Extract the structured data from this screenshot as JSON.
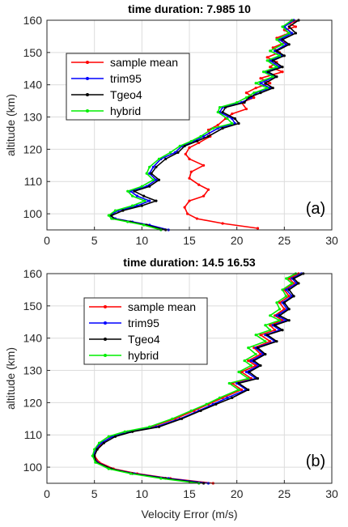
{
  "figure": {
    "xlabel_bottom": "Velocity Error (m/s)"
  },
  "chart_data": [
    {
      "type": "line",
      "panel_label": "(a)",
      "title": "time duration: 7.985          10",
      "xlabel": "",
      "ylabel": "altitude (km)",
      "xlim": [
        0,
        30
      ],
      "ylim": [
        95,
        160
      ],
      "xticks": [
        0,
        5,
        10,
        15,
        20,
        25,
        30
      ],
      "yticks": [
        100,
        110,
        120,
        130,
        140,
        150,
        160
      ],
      "grid": true,
      "legend_position": "upper-left",
      "series": [
        {
          "name": "sample mean",
          "color": "#ff0000",
          "x": [
            22.2,
            18.5,
            15.8,
            14.8,
            14.5,
            15.0,
            16.5,
            17.0,
            16.0,
            15.0,
            15.2,
            16.5,
            15.0,
            14.6,
            15.0,
            16.0,
            17.2,
            17.0,
            18.0,
            18.8,
            19.5,
            21.0,
            20.5,
            21.8,
            21.0,
            22.0,
            23.5,
            22.5,
            24.8,
            23.5,
            24.2,
            23.2,
            24.5,
            23.8,
            25.0,
            24.2,
            25.5,
            25.0,
            26.2,
            25.5,
            26.5
          ],
          "y": [
            95.5,
            97.0,
            98.5,
            100.0,
            102.0,
            104.0,
            105.5,
            107.5,
            109.0,
            111.0,
            113.0,
            115.0,
            117.0,
            118.5,
            120.5,
            122.0,
            124.0,
            126.0,
            127.5,
            129.5,
            131.0,
            132.5,
            134.5,
            136.0,
            137.5,
            139.0,
            140.5,
            142.0,
            144.0,
            145.5,
            147.0,
            148.5,
            150.0,
            151.5,
            153.0,
            154.5,
            156.0,
            157.0,
            158.0,
            159.0,
            160.0
          ]
        },
        {
          "name": "trim95",
          "color": "#0000ff",
          "x": [
            12.8,
            10.8,
            9.0,
            7.2,
            6.6,
            7.5,
            9.5,
            10.8,
            9.5,
            8.8,
            10.5,
            11.5,
            10.8,
            11.2,
            12.0,
            13.5,
            14.2,
            15.5,
            16.5,
            18.0,
            19.8,
            19.5,
            18.2,
            18.5,
            20.5,
            21.5,
            22.0,
            23.5,
            22.5,
            24.0,
            23.0,
            24.5,
            23.5,
            24.8,
            24.0,
            25.2,
            24.5,
            25.8,
            25.0,
            26.0
          ],
          "y": [
            95.0,
            96.5,
            97.5,
            98.5,
            99.5,
            101.0,
            102.5,
            104.0,
            105.5,
            107.0,
            108.5,
            110.5,
            112.5,
            114.5,
            117.0,
            119.0,
            121.0,
            122.5,
            124.0,
            126.5,
            128.0,
            129.5,
            131.5,
            133.0,
            134.5,
            136.0,
            137.5,
            139.0,
            140.5,
            142.5,
            144.0,
            145.5,
            147.5,
            149.0,
            150.5,
            152.5,
            154.0,
            156.0,
            158.0,
            160.0
          ]
        },
        {
          "name": "Tgeo4",
          "color": "#000000",
          "x": [
            12.5,
            10.5,
            8.8,
            7.0,
            6.8,
            8.0,
            10.0,
            11.5,
            10.2,
            9.2,
            10.8,
            11.8,
            11.0,
            11.5,
            12.5,
            13.8,
            14.5,
            15.8,
            17.0,
            18.5,
            20.2,
            19.8,
            18.5,
            18.8,
            20.8,
            21.2,
            22.5,
            23.8,
            23.0,
            24.2,
            23.3,
            24.8,
            23.8,
            25.0,
            24.2,
            25.5,
            24.8,
            26.2,
            25.5,
            26.5
          ],
          "y": [
            95.0,
            96.5,
            97.5,
            98.5,
            99.5,
            101.0,
            102.5,
            104.0,
            105.5,
            107.0,
            108.5,
            110.5,
            112.5,
            114.5,
            117.0,
            119.0,
            121.0,
            122.5,
            124.0,
            126.5,
            128.0,
            129.5,
            131.5,
            133.0,
            134.5,
            136.0,
            137.5,
            139.0,
            140.5,
            142.5,
            144.0,
            145.5,
            147.5,
            149.0,
            150.5,
            152.5,
            154.0,
            156.0,
            158.0,
            160.0
          ]
        },
        {
          "name": "hybrid",
          "color": "#00ee00",
          "x": [
            12.0,
            10.2,
            8.5,
            6.8,
            6.5,
            7.2,
            9.0,
            10.3,
            9.0,
            8.5,
            10.0,
            11.2,
            10.5,
            10.8,
            11.8,
            13.0,
            14.0,
            15.2,
            16.2,
            17.5,
            19.5,
            19.0,
            18.0,
            18.2,
            20.0,
            21.0,
            21.8,
            23.2,
            22.0,
            23.8,
            22.8,
            24.2,
            23.2,
            24.5,
            23.5,
            24.8,
            24.2,
            25.5,
            24.8,
            25.8
          ],
          "y": [
            95.0,
            96.5,
            97.5,
            98.5,
            99.5,
            101.0,
            102.5,
            104.0,
            105.5,
            107.0,
            108.5,
            110.5,
            112.5,
            114.5,
            117.0,
            119.0,
            121.0,
            122.5,
            124.0,
            126.5,
            128.0,
            129.5,
            131.5,
            133.0,
            134.5,
            136.0,
            137.5,
            139.0,
            140.5,
            142.5,
            144.0,
            145.5,
            147.5,
            149.0,
            150.5,
            152.5,
            154.0,
            156.0,
            158.0,
            160.0
          ]
        }
      ]
    },
    {
      "type": "line",
      "panel_label": "(b)",
      "title": "time duration: 14.5       16.53",
      "xlabel": "Velocity Error (m/s)",
      "ylabel": "altitude (km)",
      "xlim": [
        0,
        30
      ],
      "ylim": [
        95,
        160
      ],
      "xticks": [
        0,
        5,
        10,
        15,
        20,
        25,
        30
      ],
      "yticks": [
        100,
        110,
        120,
        130,
        140,
        150,
        160
      ],
      "grid": true,
      "legend_position": "upper-left",
      "series": [
        {
          "name": "sample mean",
          "color": "#ff0000",
          "x": [
            17.5,
            13.0,
            9.5,
            7.0,
            5.5,
            5.0,
            5.2,
            5.8,
            6.8,
            8.5,
            11.0,
            13.5,
            15.5,
            17.0,
            18.5,
            20.5,
            19.5,
            21.5,
            20.5,
            22.0,
            21.2,
            22.5,
            21.8,
            23.5,
            22.5,
            24.0,
            23.5,
            24.8,
            24.0,
            25.0,
            24.5,
            25.5,
            25.0,
            26.0,
            25.5,
            26.5
          ],
          "y": [
            95.0,
            96.5,
            98.0,
            99.5,
            101.5,
            103.5,
            105.5,
            107.5,
            109.5,
            111.0,
            112.5,
            115.0,
            117.5,
            119.5,
            121.5,
            124.0,
            126.0,
            127.5,
            129.5,
            131.5,
            133.0,
            135.0,
            137.0,
            139.0,
            141.0,
            142.5,
            144.0,
            145.5,
            147.0,
            149.0,
            151.0,
            153.0,
            155.0,
            157.0,
            158.5,
            160.0
          ]
        },
        {
          "name": "trim95",
          "color": "#0000ff",
          "x": [
            17.0,
            12.8,
            9.2,
            6.8,
            5.3,
            4.9,
            5.1,
            5.7,
            6.9,
            8.8,
            11.5,
            14.0,
            16.0,
            17.5,
            19.0,
            21.0,
            20.0,
            22.0,
            21.0,
            22.3,
            21.5,
            22.8,
            22.0,
            24.0,
            23.0,
            24.5,
            23.8,
            25.2,
            24.2,
            25.3,
            24.8,
            25.8,
            25.2,
            26.3,
            25.8,
            26.8
          ],
          "y": [
            95.0,
            96.5,
            98.0,
            99.5,
            101.5,
            103.5,
            105.5,
            107.5,
            109.5,
            111.0,
            112.5,
            115.0,
            117.5,
            119.5,
            121.5,
            124.0,
            126.0,
            127.5,
            129.5,
            131.5,
            133.0,
            135.0,
            137.0,
            139.0,
            141.0,
            142.5,
            144.0,
            145.5,
            147.0,
            149.0,
            151.0,
            153.0,
            155.0,
            157.0,
            158.5,
            160.0
          ]
        },
        {
          "name": "Tgeo4",
          "color": "#000000",
          "x": [
            16.5,
            12.5,
            9.0,
            6.8,
            5.2,
            5.0,
            5.3,
            6.0,
            7.2,
            9.0,
            11.8,
            14.2,
            16.2,
            17.8,
            19.5,
            21.2,
            20.2,
            22.2,
            21.3,
            22.5,
            21.8,
            23.0,
            22.2,
            24.2,
            23.2,
            24.8,
            24.0,
            25.5,
            24.5,
            25.5,
            25.0,
            26.0,
            25.5,
            26.5,
            26.0,
            27.0
          ],
          "y": [
            95.0,
            96.5,
            98.0,
            99.5,
            101.5,
            103.5,
            105.5,
            107.5,
            109.5,
            111.0,
            112.5,
            115.0,
            117.5,
            119.5,
            121.5,
            124.0,
            126.0,
            127.5,
            129.5,
            131.5,
            133.0,
            135.0,
            137.0,
            139.0,
            141.0,
            142.5,
            144.0,
            145.5,
            147.0,
            149.0,
            151.0,
            153.0,
            155.0,
            157.0,
            158.5,
            160.0
          ]
        },
        {
          "name": "hybrid",
          "color": "#00ee00",
          "x": [
            16.0,
            12.0,
            8.8,
            6.5,
            5.1,
            4.8,
            5.0,
            5.5,
            6.5,
            8.2,
            10.8,
            13.2,
            15.2,
            16.8,
            18.2,
            20.2,
            19.2,
            21.2,
            20.2,
            21.5,
            20.8,
            22.0,
            21.2,
            23.0,
            22.0,
            23.5,
            23.0,
            24.5,
            23.5,
            24.5,
            24.2,
            25.2,
            24.8,
            25.8,
            25.2,
            26.2
          ],
          "y": [
            95.0,
            96.5,
            98.0,
            99.5,
            101.5,
            103.5,
            105.5,
            107.5,
            109.5,
            111.0,
            112.5,
            115.0,
            117.5,
            119.5,
            121.5,
            124.0,
            126.0,
            127.5,
            129.5,
            131.5,
            133.0,
            135.0,
            137.0,
            139.0,
            141.0,
            142.5,
            144.0,
            145.5,
            147.0,
            149.0,
            151.0,
            153.0,
            155.0,
            157.0,
            158.5,
            160.0
          ]
        }
      ]
    }
  ]
}
